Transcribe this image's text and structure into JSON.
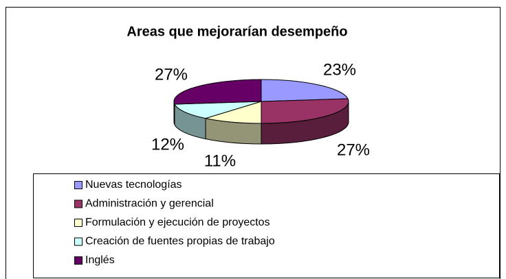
{
  "chart_data": {
    "type": "pie3d",
    "title": "Areas que mejorarían desempeño",
    "categories": [
      "Nuevas tecnologías",
      "Administración y gerencial",
      "Formulación y ejecución de proyectos",
      "Creación de fuentes propias de trabajo",
      "Inglés"
    ],
    "values": [
      23,
      27,
      11,
      12,
      27
    ],
    "value_labels": [
      "23%",
      "27%",
      "11%",
      "12%",
      "27%"
    ],
    "colors": [
      "#9999ff",
      "#993366",
      "#ffffcc",
      "#ccffff",
      "#660066"
    ],
    "legend": "bottom"
  }
}
